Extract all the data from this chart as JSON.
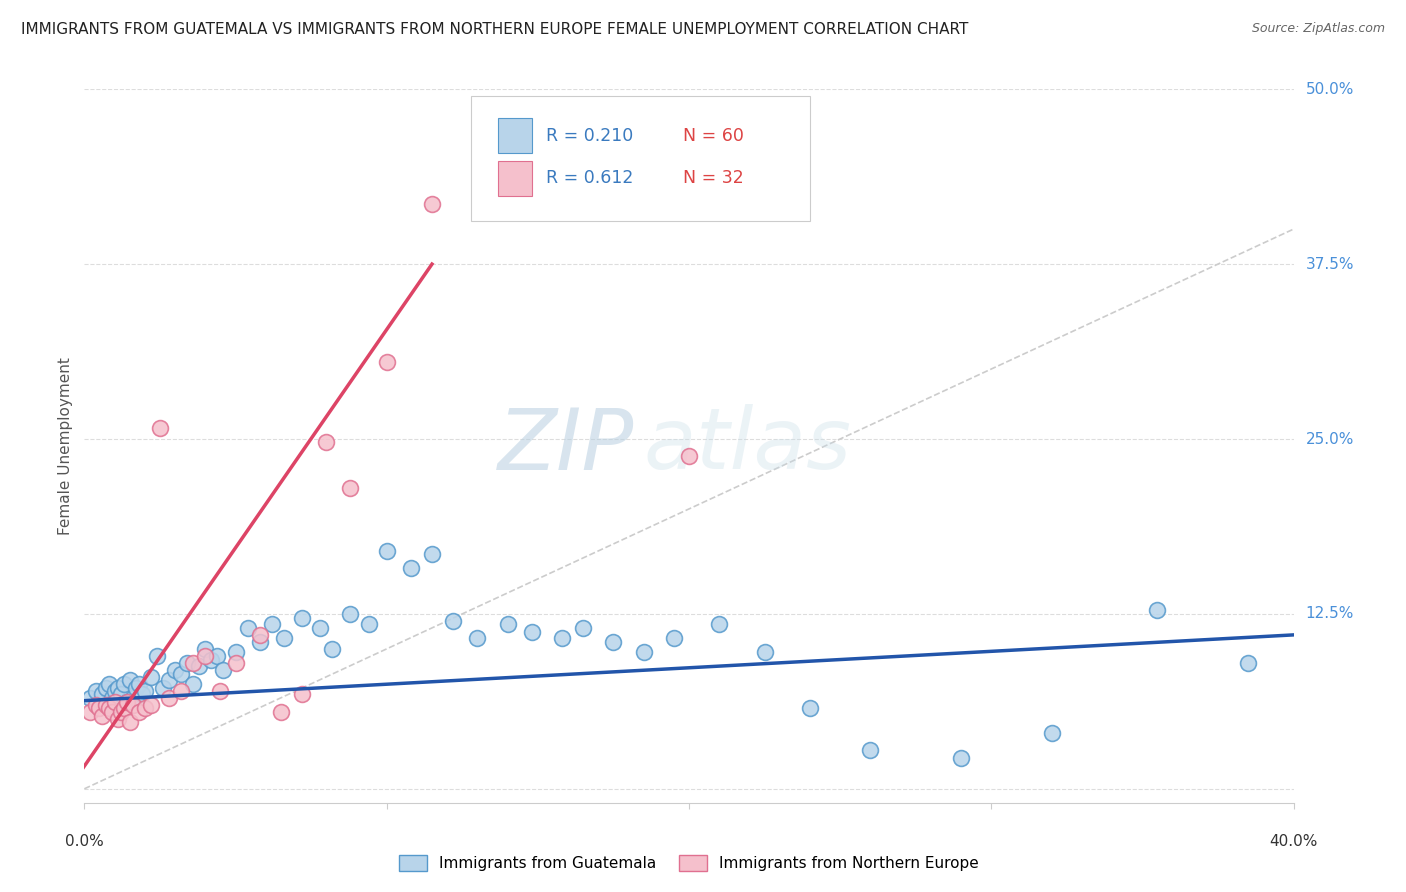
{
  "title": "IMMIGRANTS FROM GUATEMALA VS IMMIGRANTS FROM NORTHERN EUROPE FEMALE UNEMPLOYMENT CORRELATION CHART",
  "source": "Source: ZipAtlas.com",
  "ylabel": "Female Unemployment",
  "right_yticks": [
    0.0,
    0.125,
    0.25,
    0.375,
    0.5
  ],
  "right_yticklabels": [
    "",
    "12.5%",
    "25.0%",
    "37.5%",
    "50.0%"
  ],
  "xlim": [
    0.0,
    0.4
  ],
  "ylim": [
    -0.01,
    0.5
  ],
  "series1_color": "#b8d4ea",
  "series1_edge": "#5599cc",
  "series2_color": "#f5c0cc",
  "series2_edge": "#e07090",
  "trend1_color": "#2255aa",
  "trend2_color": "#dd4466",
  "diagonal_color": "#cccccc",
  "label1": "Immigrants from Guatemala",
  "label2": "Immigrants from Northern Europe",
  "scatter1_x": [
    0.002,
    0.004,
    0.006,
    0.007,
    0.008,
    0.009,
    0.01,
    0.011,
    0.012,
    0.013,
    0.014,
    0.015,
    0.016,
    0.017,
    0.018,
    0.019,
    0.02,
    0.022,
    0.024,
    0.026,
    0.028,
    0.03,
    0.032,
    0.034,
    0.036,
    0.038,
    0.04,
    0.042,
    0.044,
    0.046,
    0.05,
    0.054,
    0.058,
    0.062,
    0.066,
    0.072,
    0.078,
    0.082,
    0.088,
    0.094,
    0.1,
    0.108,
    0.115,
    0.122,
    0.13,
    0.14,
    0.148,
    0.158,
    0.165,
    0.175,
    0.185,
    0.195,
    0.21,
    0.225,
    0.24,
    0.26,
    0.29,
    0.32,
    0.355,
    0.385
  ],
  "scatter1_y": [
    0.065,
    0.07,
    0.068,
    0.072,
    0.075,
    0.065,
    0.07,
    0.072,
    0.068,
    0.075,
    0.062,
    0.078,
    0.065,
    0.072,
    0.075,
    0.068,
    0.07,
    0.08,
    0.095,
    0.072,
    0.078,
    0.085,
    0.082,
    0.09,
    0.075,
    0.088,
    0.1,
    0.092,
    0.095,
    0.085,
    0.098,
    0.115,
    0.105,
    0.118,
    0.108,
    0.122,
    0.115,
    0.1,
    0.125,
    0.118,
    0.17,
    0.158,
    0.168,
    0.12,
    0.108,
    0.118,
    0.112,
    0.108,
    0.115,
    0.105,
    0.098,
    0.108,
    0.118,
    0.098,
    0.058,
    0.028,
    0.022,
    0.04,
    0.128,
    0.09
  ],
  "scatter2_x": [
    0.002,
    0.004,
    0.005,
    0.006,
    0.007,
    0.008,
    0.009,
    0.01,
    0.011,
    0.012,
    0.013,
    0.014,
    0.015,
    0.016,
    0.018,
    0.02,
    0.022,
    0.025,
    0.028,
    0.032,
    0.036,
    0.04,
    0.045,
    0.05,
    0.058,
    0.065,
    0.072,
    0.08,
    0.088,
    0.1,
    0.115,
    0.2
  ],
  "scatter2_y": [
    0.055,
    0.06,
    0.058,
    0.052,
    0.06,
    0.058,
    0.055,
    0.062,
    0.05,
    0.055,
    0.058,
    0.062,
    0.048,
    0.06,
    0.055,
    0.058,
    0.06,
    0.258,
    0.065,
    0.07,
    0.09,
    0.095,
    0.07,
    0.09,
    0.11,
    0.055,
    0.068,
    0.248,
    0.215,
    0.305,
    0.418,
    0.238
  ],
  "trend1_x": [
    0.0,
    0.4
  ],
  "trend1_y": [
    0.063,
    0.11
  ],
  "trend2_x": [
    -0.002,
    0.115
  ],
  "trend2_y": [
    0.01,
    0.375
  ],
  "watermark_zip": "ZIP",
  "watermark_atlas": "atlas",
  "title_fontsize": 11,
  "source_fontsize": 9,
  "grid_color": "#dddddd",
  "tick_color": "#aaaaaa"
}
